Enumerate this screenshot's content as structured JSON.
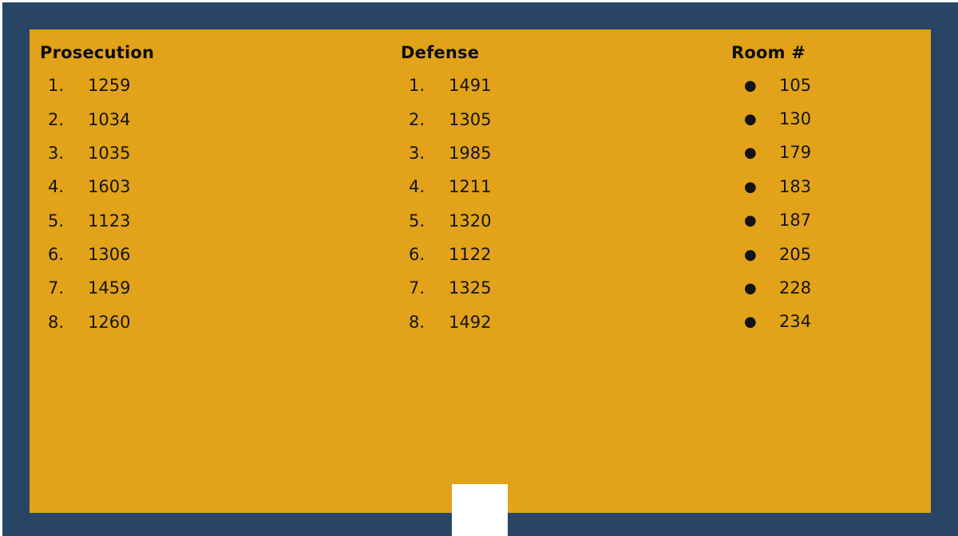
{
  "columns": {
    "prosecution": {
      "header": "Prosecution",
      "items": [
        {
          "marker": "1.",
          "value": "1259"
        },
        {
          "marker": "2.",
          "value": "1034"
        },
        {
          "marker": "3.",
          "value": "1035"
        },
        {
          "marker": "4.",
          "value": "1603"
        },
        {
          "marker": "5.",
          "value": "1123"
        },
        {
          "marker": "6.",
          "value": "1306"
        },
        {
          "marker": "7.",
          "value": "1459"
        },
        {
          "marker": "8.",
          "value": "1260"
        }
      ]
    },
    "defense": {
      "header": "Defense",
      "items": [
        {
          "marker": "1.",
          "value": "1491"
        },
        {
          "marker": "2.",
          "value": "1305"
        },
        {
          "marker": "3.",
          "value": "1985"
        },
        {
          "marker": "4.",
          "value": "1211"
        },
        {
          "marker": "5.",
          "value": "1320"
        },
        {
          "marker": "6.",
          "value": "1122"
        },
        {
          "marker": "7.",
          "value": "1325"
        },
        {
          "marker": "8.",
          "value": "1492"
        }
      ]
    },
    "room": {
      "header": "Room #",
      "items": [
        {
          "marker": "●",
          "value": "105"
        },
        {
          "marker": "●",
          "value": "130"
        },
        {
          "marker": "●",
          "value": "179"
        },
        {
          "marker": "●",
          "value": "183"
        },
        {
          "marker": "●",
          "value": "187"
        },
        {
          "marker": "●",
          "value": "205"
        },
        {
          "marker": "●",
          "value": "228"
        },
        {
          "marker": "●",
          "value": "234"
        }
      ]
    }
  },
  "colors": {
    "frame": "#294566",
    "panel": "#e2a31a",
    "text": "#141414"
  }
}
